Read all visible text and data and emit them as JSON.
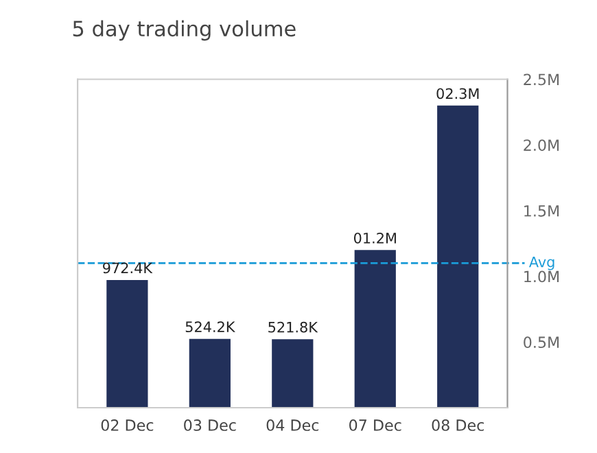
{
  "chart_data": {
    "type": "bar",
    "title": "5 day trading volume",
    "categories": [
      "02 Dec",
      "03 Dec",
      "04 Dec",
      "07 Dec",
      "08 Dec"
    ],
    "values": [
      972400,
      524200,
      521800,
      1200000,
      2300000
    ],
    "value_labels": [
      "972.4K",
      "524.2K",
      "521.8K",
      "01.2M",
      "02.3M"
    ],
    "color": "#22305a",
    "ylim": [
      0,
      2500000
    ],
    "yticks": [
      {
        "value": 500000,
        "label": "0.5M"
      },
      {
        "value": 1000000,
        "label": "1.0M"
      },
      {
        "value": 1500000,
        "label": "1.5M"
      },
      {
        "value": 2000000,
        "label": "2.0M"
      },
      {
        "value": 2500000,
        "label": "2.5M"
      }
    ],
    "ref_lines": [
      {
        "axis": "y",
        "value": 1100000,
        "label": "Avg",
        "color": "#1a9bd7",
        "line_style": "dashed"
      }
    ],
    "grid": false,
    "legend": false
  }
}
